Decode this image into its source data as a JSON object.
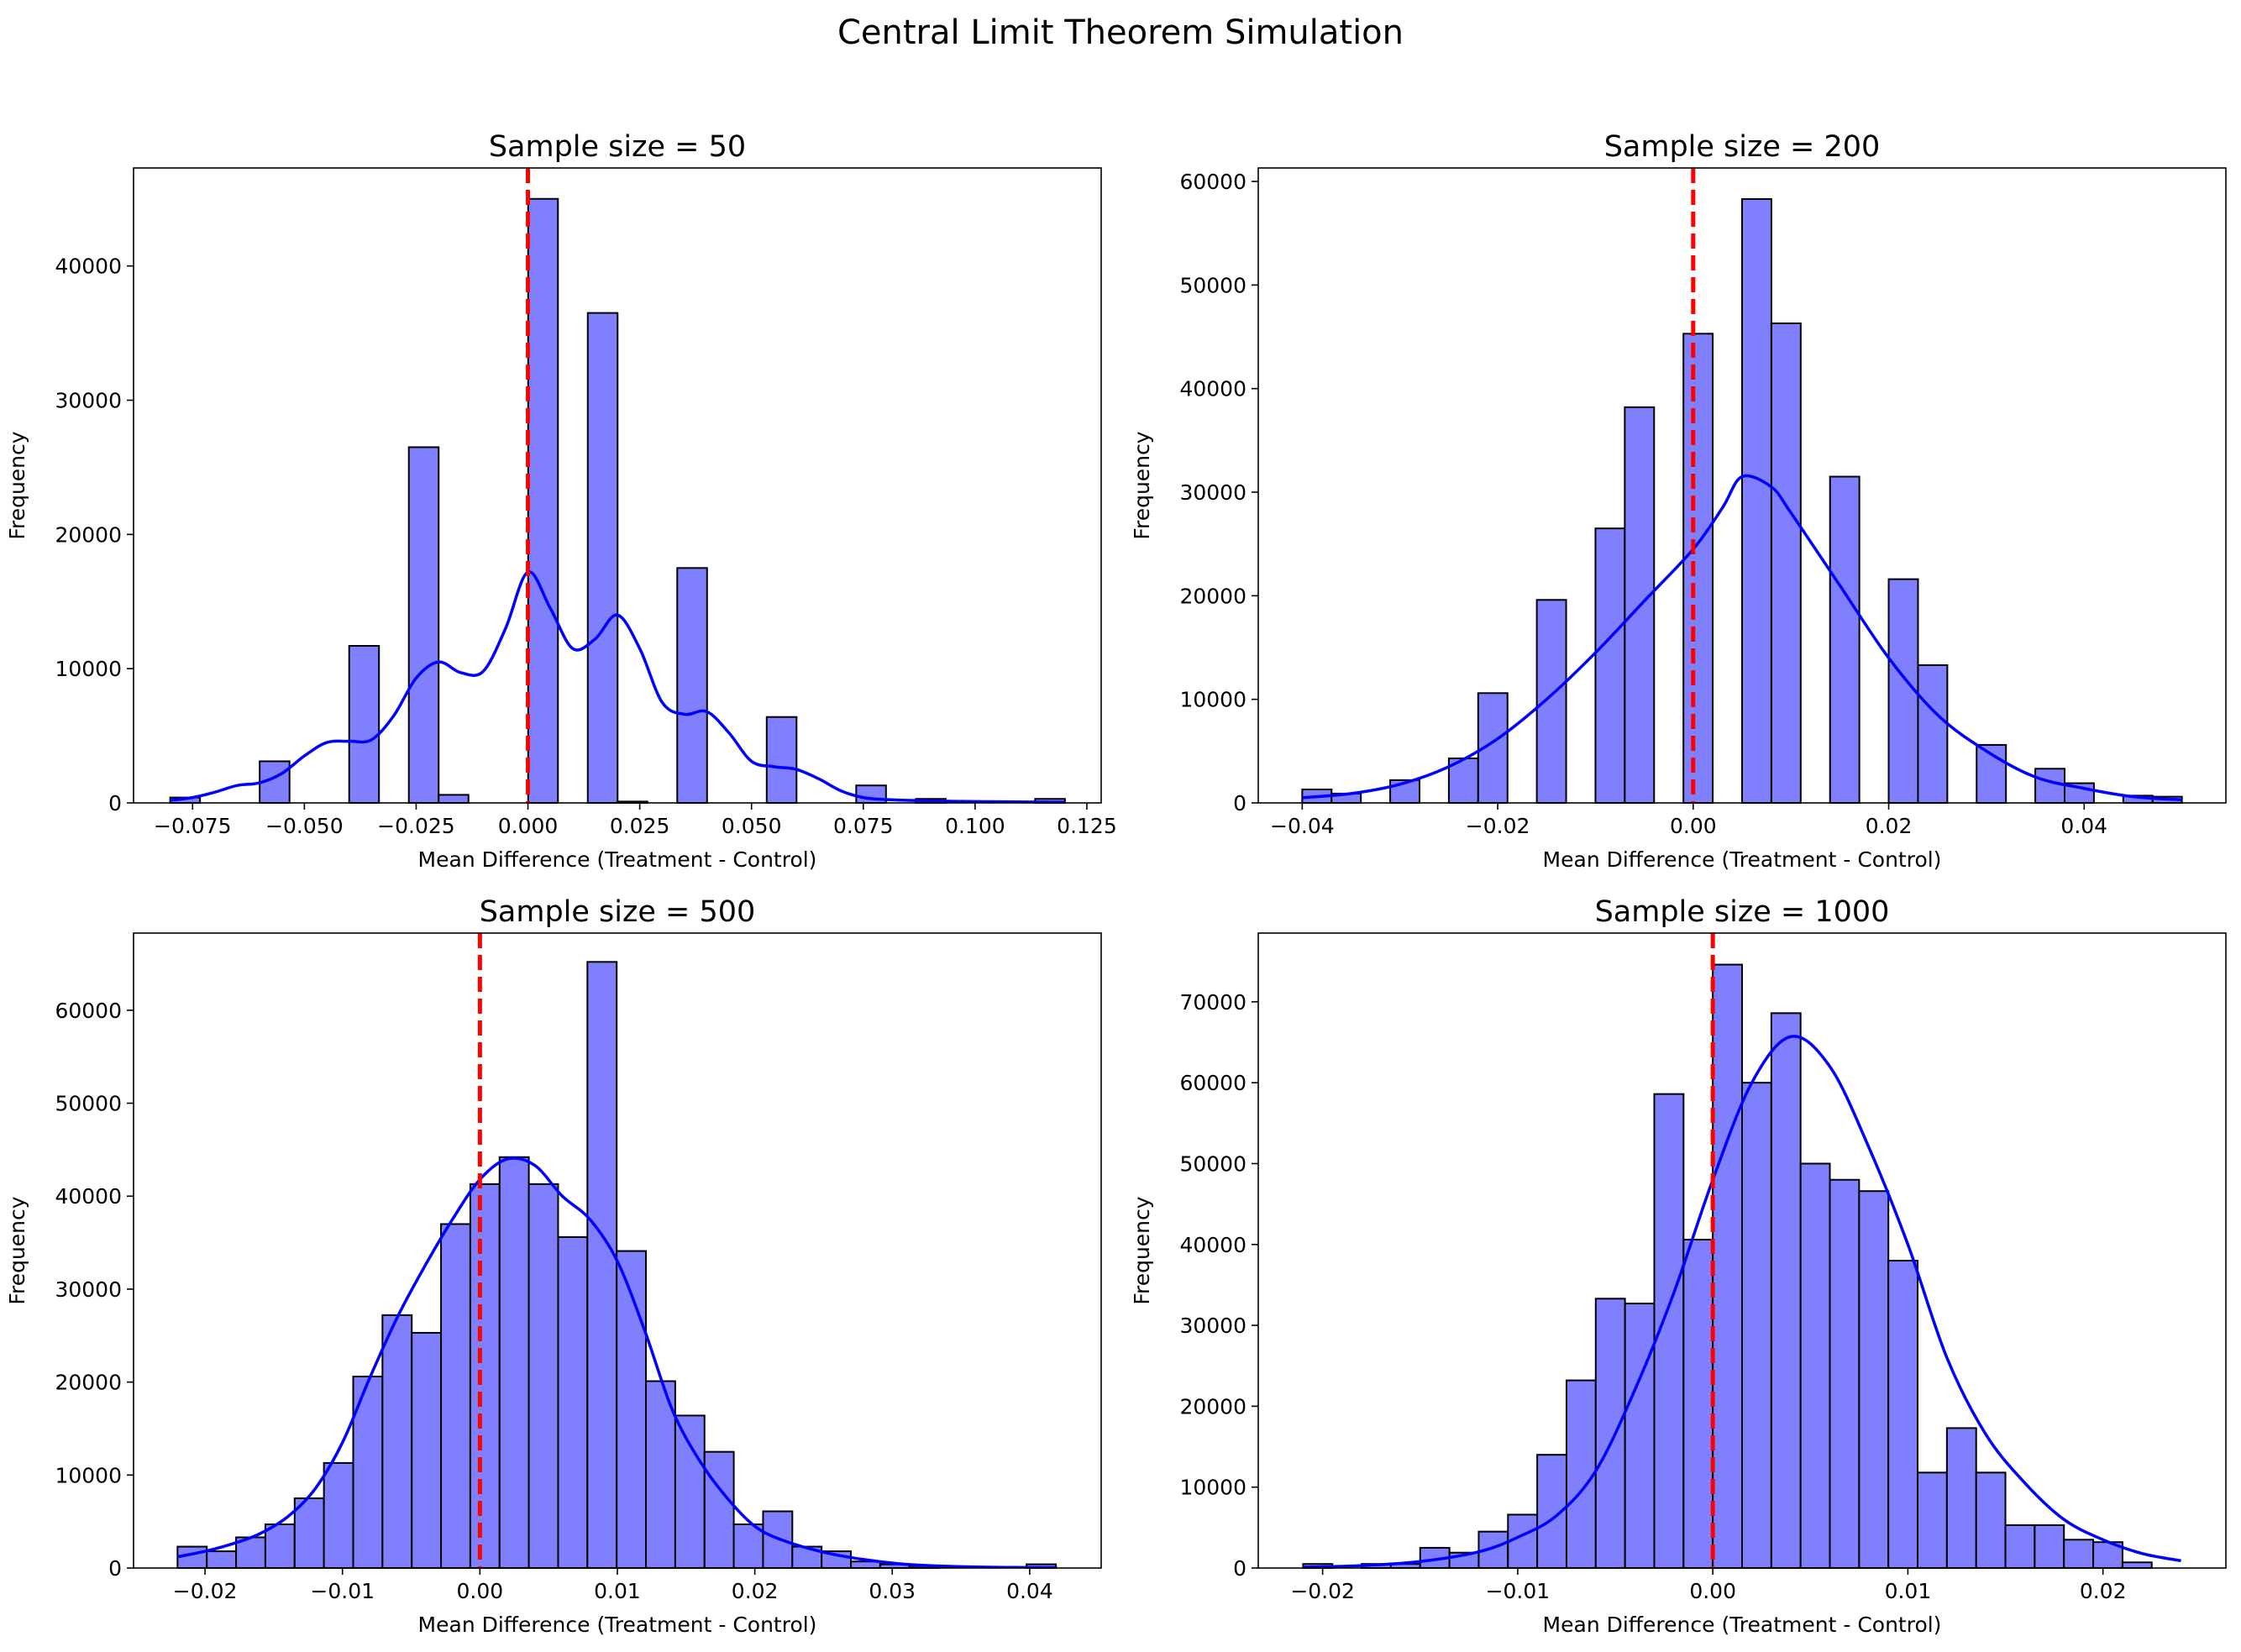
{
  "figure": {
    "title": "Central Limit Theorem Simulation"
  },
  "colors": {
    "bar_fill": "#8080ff",
    "bar_edge": "#000000",
    "kde": "#0000ff",
    "ref_line": "#ff0000"
  },
  "chart_data": [
    {
      "type": "bar",
      "title": "Sample size = 50",
      "xlabel": "Mean Difference (Treatment - Control)",
      "ylabel": "Frequency",
      "xlim": [
        -0.0882,
        0.1282
      ],
      "ylim": [
        0,
        47300
      ],
      "xticks": [
        -0.075,
        -0.05,
        -0.025,
        0.0,
        0.025,
        0.05,
        0.075,
        0.1,
        0.125
      ],
      "xtick_labels": [
        "−0.075",
        "−0.050",
        "−0.025",
        "0.000",
        "0.025",
        "0.050",
        "0.075",
        "0.100",
        "0.125"
      ],
      "yticks": [
        0,
        10000,
        20000,
        30000,
        40000
      ],
      "ytick_labels": [
        "0",
        "10000",
        "20000",
        "30000",
        "40000"
      ],
      "reference_line_x": 0.0,
      "bins": {
        "start": -0.08,
        "width": 0.00667
      },
      "values": [
        400,
        0,
        0,
        3100,
        0,
        0,
        11700,
        0,
        26500,
        600,
        0,
        0,
        45000,
        0,
        36500,
        100,
        0,
        17500,
        0,
        0,
        6400,
        0,
        0,
        1300,
        0,
        300,
        0,
        0,
        0,
        300
      ],
      "kde": [
        [
          -0.08,
          200
        ],
        [
          -0.075,
          400
        ],
        [
          -0.07,
          800
        ],
        [
          -0.065,
          1300
        ],
        [
          -0.06,
          1500
        ],
        [
          -0.055,
          2200
        ],
        [
          -0.05,
          3500
        ],
        [
          -0.045,
          4500
        ],
        [
          -0.04,
          4600
        ],
        [
          -0.035,
          4700
        ],
        [
          -0.03,
          6500
        ],
        [
          -0.025,
          9300
        ],
        [
          -0.02,
          10500
        ],
        [
          -0.015,
          9700
        ],
        [
          -0.01,
          9800
        ],
        [
          -0.005,
          13000
        ],
        [
          0.0,
          17200
        ],
        [
          0.005,
          14500
        ],
        [
          0.01,
          11500
        ],
        [
          0.015,
          12200
        ],
        [
          0.02,
          14000
        ],
        [
          0.025,
          11500
        ],
        [
          0.03,
          7500
        ],
        [
          0.035,
          6600
        ],
        [
          0.04,
          6800
        ],
        [
          0.045,
          5200
        ],
        [
          0.05,
          3100
        ],
        [
          0.055,
          2700
        ],
        [
          0.06,
          2500
        ],
        [
          0.065,
          1800
        ],
        [
          0.07,
          900
        ],
        [
          0.075,
          400
        ],
        [
          0.08,
          250
        ],
        [
          0.09,
          150
        ],
        [
          0.1,
          100
        ],
        [
          0.12,
          50
        ]
      ]
    },
    {
      "type": "bar",
      "title": "Sample size = 200",
      "xlabel": "Mean Difference (Treatment - Control)",
      "ylabel": "Frequency",
      "xlim": [
        -0.0445,
        0.0545
      ],
      "ylim": [
        0,
        61300
      ],
      "xticks": [
        -0.04,
        -0.02,
        0.0,
        0.02,
        0.04
      ],
      "xtick_labels": [
        "−0.04",
        "−0.02",
        "0.00",
        "0.02",
        "0.04"
      ],
      "yticks": [
        0,
        10000,
        20000,
        30000,
        40000,
        50000,
        60000
      ],
      "ytick_labels": [
        "0",
        "10000",
        "20000",
        "30000",
        "40000",
        "50000",
        "60000"
      ],
      "reference_line_x": 0.0,
      "bins": {
        "start": -0.04,
        "width": 0.003
      },
      "values": [
        1300,
        900,
        0,
        2200,
        0,
        4300,
        10600,
        0,
        19600,
        0,
        26500,
        38200,
        0,
        45300,
        0,
        58300,
        46300,
        0,
        31500,
        0,
        21600,
        13300,
        0,
        5600,
        0,
        3300,
        1900,
        0,
        700,
        600
      ],
      "kde": [
        [
          -0.04,
          500
        ],
        [
          -0.035,
          900
        ],
        [
          -0.03,
          1800
        ],
        [
          -0.025,
          3500
        ],
        [
          -0.02,
          6200
        ],
        [
          -0.015,
          10000
        ],
        [
          -0.01,
          14500
        ],
        [
          -0.005,
          19500
        ],
        [
          0.0,
          24500
        ],
        [
          0.003,
          28500
        ],
        [
          0.005,
          31500
        ],
        [
          0.008,
          30500
        ],
        [
          0.01,
          28000
        ],
        [
          0.015,
          21000
        ],
        [
          0.02,
          14000
        ],
        [
          0.025,
          8500
        ],
        [
          0.03,
          5000
        ],
        [
          0.035,
          2500
        ],
        [
          0.04,
          1400
        ],
        [
          0.045,
          600
        ],
        [
          0.05,
          300
        ]
      ]
    },
    {
      "type": "bar",
      "title": "Sample size = 500",
      "xlabel": "Mean Difference (Treatment - Control)",
      "ylabel": "Frequency",
      "xlim": [
        -0.0252,
        0.0452
      ],
      "ylim": [
        0,
        68300
      ],
      "xticks": [
        -0.02,
        -0.01,
        0.0,
        0.01,
        0.02,
        0.03,
        0.04
      ],
      "xtick_labels": [
        "−0.02",
        "−0.01",
        "0.00",
        "0.01",
        "0.02",
        "0.03",
        "0.04"
      ],
      "yticks": [
        0,
        10000,
        20000,
        30000,
        40000,
        50000,
        60000
      ],
      "ytick_labels": [
        "0",
        "10000",
        "20000",
        "30000",
        "40000",
        "50000",
        "60000"
      ],
      "reference_line_x": 0.0,
      "bins": {
        "start": -0.022,
        "width": 0.00213
      },
      "values": [
        2300,
        1800,
        3300,
        4700,
        7500,
        11300,
        20600,
        27200,
        25300,
        37000,
        41300,
        44200,
        41300,
        35600,
        65200,
        34100,
        20100,
        16400,
        12500,
        4700,
        6100,
        2300,
        1800,
        700,
        400,
        200,
        0,
        0,
        0,
        400
      ],
      "kde": [
        [
          -0.022,
          1200
        ],
        [
          -0.02,
          1800
        ],
        [
          -0.018,
          2600
        ],
        [
          -0.016,
          3700
        ],
        [
          -0.014,
          5500
        ],
        [
          -0.012,
          8500
        ],
        [
          -0.01,
          13500
        ],
        [
          -0.008,
          20500
        ],
        [
          -0.006,
          27000
        ],
        [
          -0.004,
          32500
        ],
        [
          -0.002,
          37500
        ],
        [
          0.0,
          41800
        ],
        [
          0.002,
          44000
        ],
        [
          0.004,
          43300
        ],
        [
          0.006,
          40000
        ],
        [
          0.008,
          37500
        ],
        [
          0.01,
          33000
        ],
        [
          0.012,
          25500
        ],
        [
          0.014,
          17000
        ],
        [
          0.016,
          11500
        ],
        [
          0.018,
          7500
        ],
        [
          0.02,
          4500
        ],
        [
          0.022,
          3000
        ],
        [
          0.025,
          1700
        ],
        [
          0.028,
          900
        ],
        [
          0.031,
          400
        ],
        [
          0.035,
          150
        ],
        [
          0.04,
          50
        ],
        [
          0.042,
          30
        ]
      ]
    },
    {
      "type": "bar",
      "title": "Sample size = 1000",
      "xlabel": "Mean Difference (Treatment - Control)",
      "ylabel": "Frequency",
      "xlim": [
        -0.0233,
        0.0263
      ],
      "ylim": [
        0,
        78500
      ],
      "xticks": [
        -0.02,
        -0.01,
        0.0,
        0.01,
        0.02
      ],
      "xtick_labels": [
        "−0.02",
        "−0.01",
        "0.00",
        "0.01",
        "0.02"
      ],
      "yticks": [
        0,
        10000,
        20000,
        30000,
        40000,
        50000,
        60000,
        70000
      ],
      "ytick_labels": [
        "0",
        "10000",
        "20000",
        "30000",
        "40000",
        "50000",
        "60000",
        "70000"
      ],
      "reference_line_x": 0.0,
      "bins": {
        "start": -0.021,
        "width": 0.0015
      },
      "values": [
        500,
        0,
        500,
        500,
        2500,
        1900,
        4500,
        6600,
        14000,
        23200,
        33300,
        32700,
        58600,
        40600,
        74600,
        60000,
        68600,
        50000,
        48000,
        46600,
        38000,
        11800,
        17300,
        11800,
        5300,
        5300,
        3500,
        3200,
        700,
        0
      ],
      "kde": [
        [
          -0.021,
          100
        ],
        [
          -0.018,
          300
        ],
        [
          -0.015,
          800
        ],
        [
          -0.012,
          2000
        ],
        [
          -0.01,
          3800
        ],
        [
          -0.008,
          6500
        ],
        [
          -0.006,
          12000
        ],
        [
          -0.004,
          22000
        ],
        [
          -0.002,
          34000
        ],
        [
          0.0,
          48000
        ],
        [
          0.002,
          60000
        ],
        [
          0.004,
          65700
        ],
        [
          0.006,
          62000
        ],
        [
          0.008,
          52000
        ],
        [
          0.01,
          40000
        ],
        [
          0.012,
          26000
        ],
        [
          0.014,
          16500
        ],
        [
          0.016,
          10500
        ],
        [
          0.018,
          6000
        ],
        [
          0.02,
          3500
        ],
        [
          0.022,
          1800
        ],
        [
          0.024,
          900
        ]
      ]
    }
  ]
}
